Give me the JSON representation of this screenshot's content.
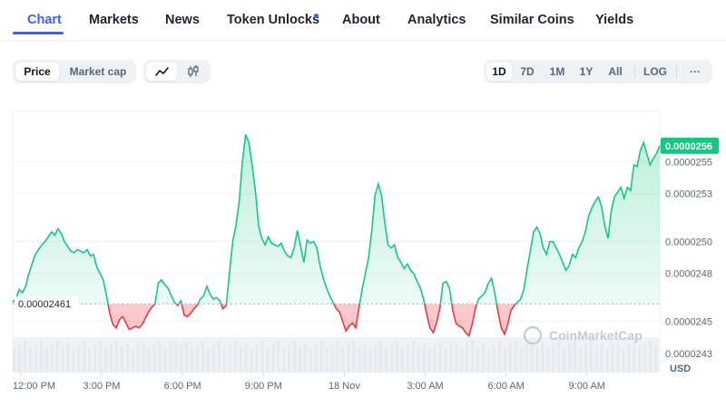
{
  "tabs": [
    {
      "label": "Chart",
      "active": true
    },
    {
      "label": "Markets"
    },
    {
      "label": "News"
    },
    {
      "label": "Token Unlocks",
      "dot": true
    },
    {
      "label": "About"
    },
    {
      "label": "Analytics"
    },
    {
      "label": "Similar Coins"
    },
    {
      "label": "Yields"
    }
  ],
  "toolbar": {
    "mode": {
      "price": "Price",
      "market_cap": "Market cap",
      "active": "Price"
    },
    "chart_style": {
      "line_icon": "line-chart-icon",
      "candle_icon": "candlestick-icon",
      "active": "line"
    },
    "ranges": [
      "1D",
      "7D",
      "1M",
      "1Y",
      "All"
    ],
    "active_range": "1D",
    "log_label": "LOG",
    "more_label": "···"
  },
  "colors": {
    "accent": "#3861fb",
    "up": "#16c784",
    "down": "#ea3943"
  },
  "chart_data": {
    "type": "area",
    "reference_value_label": "0.00002461",
    "last_value_label": "0.0000256",
    "y_tick_labels": [
      "0.0000255",
      "0.0000253",
      "0.0000250",
      "0.0000248",
      "0.0000245",
      "0.0000243"
    ],
    "y_ticks": [
      2.55e-05,
      2.53e-05,
      2.5e-05,
      2.48e-05,
      2.45e-05,
      2.43e-05
    ],
    "ylim": [
      2.418e-05,
      2.582e-05
    ],
    "y_unit_label": "USD",
    "x_tick_labels": [
      "12:00 PM",
      "3:00 PM",
      "6:00 PM",
      "9:00 PM",
      "18 Nov",
      "3:00 AM",
      "6:00 AM",
      "9:00 AM"
    ],
    "x_ticks_hours": [
      0.3,
      3.3,
      6.3,
      9.3,
      12.3,
      15.3,
      18.3,
      21.3
    ],
    "xlim_hours": [
      0,
      24
    ],
    "watermark": "CoinMarketCap",
    "series": [
      {
        "values_e8": [
          2462,
          2464,
          2470,
          2468,
          2472,
          2480,
          2486,
          2492,
          2495,
          2498,
          2500,
          2503,
          2506,
          2504,
          2508,
          2505,
          2500,
          2497,
          2494,
          2493,
          2495,
          2494,
          2493,
          2495,
          2491,
          2492,
          2484,
          2480,
          2476,
          2466,
          2455,
          2448,
          2446,
          2451,
          2453,
          2449,
          2445,
          2446,
          2447,
          2446,
          2448,
          2452,
          2456,
          2459,
          2461,
          2474,
          2476,
          2473,
          2471,
          2466,
          2462,
          2460,
          2463,
          2454,
          2453,
          2455,
          2458,
          2460,
          2464,
          2466,
          2472,
          2467,
          2464,
          2465,
          2463,
          2458,
          2460,
          2480,
          2500,
          2510,
          2525,
          2550,
          2567,
          2562,
          2548,
          2532,
          2510,
          2502,
          2498,
          2503,
          2499,
          2498,
          2497,
          2499,
          2494,
          2491,
          2490,
          2496,
          2507,
          2497,
          2487,
          2501,
          2499,
          2500,
          2496,
          2485,
          2477,
          2471,
          2466,
          2462,
          2458,
          2456,
          2450,
          2444,
          2447,
          2449,
          2446,
          2458,
          2470,
          2480,
          2490,
          2507,
          2529,
          2536,
          2529,
          2512,
          2498,
          2496,
          2498,
          2490,
          2487,
          2483,
          2486,
          2482,
          2480,
          2475,
          2471,
          2464,
          2454,
          2446,
          2443,
          2449,
          2458,
          2474,
          2475,
          2471,
          2457,
          2449,
          2447,
          2446,
          2443,
          2441,
          2448,
          2458,
          2464,
          2466,
          2468,
          2474,
          2477,
          2468,
          2456,
          2446,
          2442,
          2448,
          2457,
          2460,
          2462,
          2464,
          2470,
          2483,
          2494,
          2506,
          2509,
          2505,
          2496,
          2492,
          2500,
          2500,
          2496,
          2492,
          2487,
          2482,
          2485,
          2492,
          2490,
          2496,
          2500,
          2506,
          2516,
          2521,
          2525,
          2528,
          2522,
          2510,
          2502,
          2519,
          2528,
          2531,
          2534,
          2527,
          2534,
          2532,
          2548,
          2547,
          2557,
          2562,
          2555,
          2548,
          2552,
          2555,
          2560
        ]
      }
    ]
  }
}
